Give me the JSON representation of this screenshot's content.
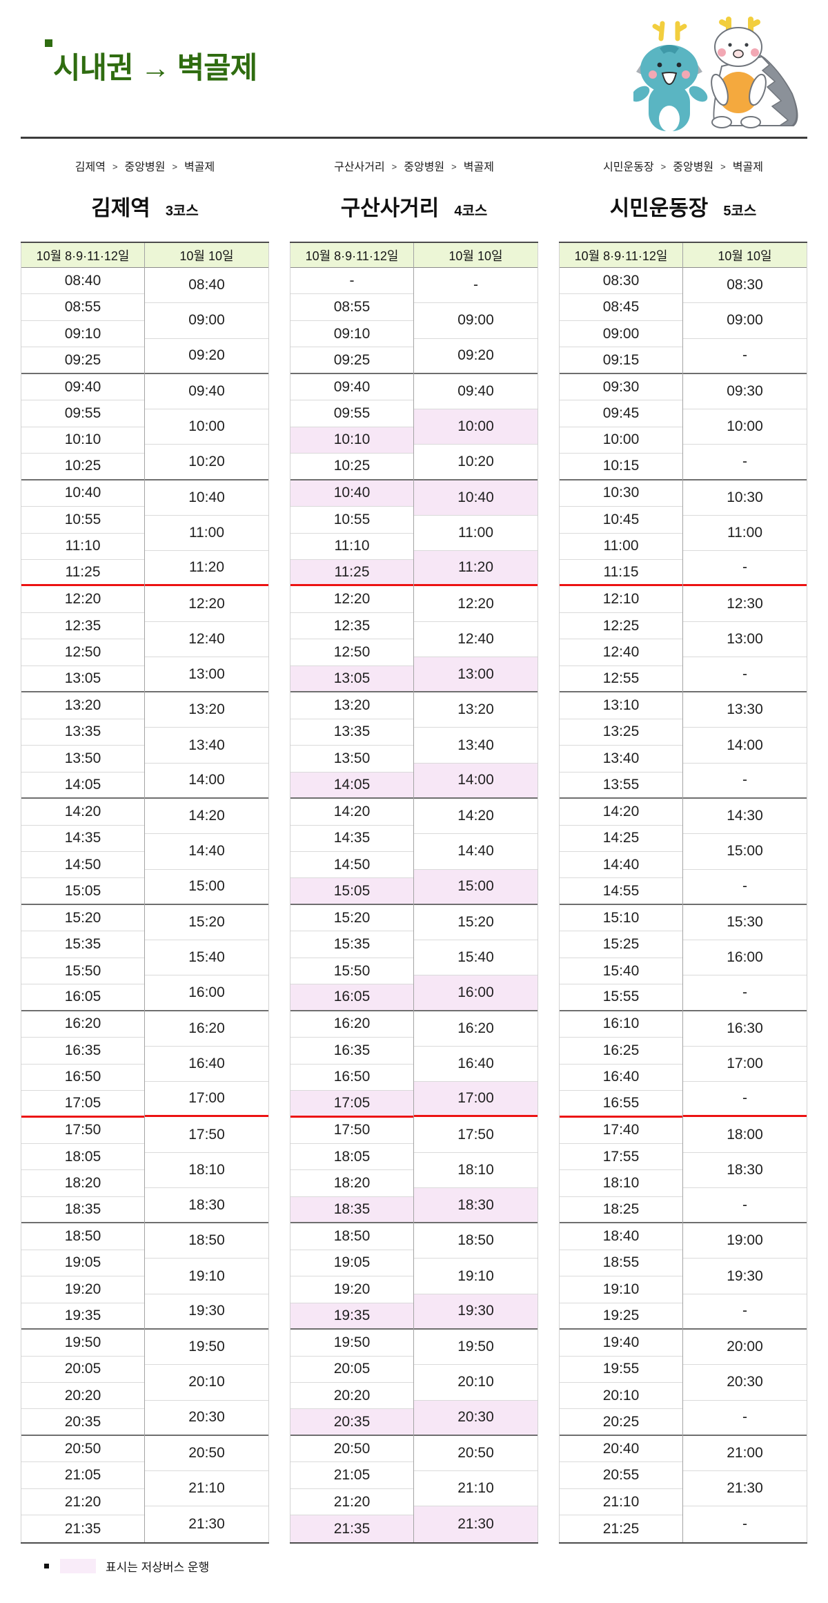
{
  "page": {
    "title": "시내권 → 벽골제",
    "breadcrumb_sep": ">",
    "colors": {
      "title_green": "#2f6c10",
      "header_bg": "#ecf6d6",
      "lowfloor_highlight": "#f7e7f6",
      "red_divider": "#ec1212",
      "mascot_teal": "#5ab5c2",
      "mascot_yellow": "#f2ce3e",
      "mascot_orange": "#f4a93e"
    }
  },
  "day_headers": [
    "10월 8·9·11·12일",
    "10월 10일"
  ],
  "legend": {
    "text": "표시는 저상버스 운행"
  },
  "tables": [
    {
      "breadcrumb": [
        "김제역",
        "중앙병원",
        "벽골제"
      ],
      "title": "김제역",
      "course": "3코스",
      "groups": [
        {
          "left": [
            "08:40",
            "08:55",
            "09:10",
            "09:25"
          ],
          "right": [
            "08:40",
            "09:00",
            "09:20"
          ],
          "left_hl": [],
          "right_hl": []
        },
        {
          "left": [
            "09:40",
            "09:55",
            "10:10",
            "10:25"
          ],
          "right": [
            "09:40",
            "10:00",
            "10:20"
          ],
          "left_hl": [],
          "right_hl": []
        },
        {
          "left": [
            "10:40",
            "10:55",
            "11:10",
            "11:25"
          ],
          "right": [
            "10:40",
            "11:00",
            "11:20"
          ],
          "left_hl": [],
          "right_hl": [],
          "red_after": true
        },
        {
          "left": [
            "12:20",
            "12:35",
            "12:50",
            "13:05"
          ],
          "right": [
            "12:20",
            "12:40",
            "13:00"
          ],
          "left_hl": [],
          "right_hl": []
        },
        {
          "left": [
            "13:20",
            "13:35",
            "13:50",
            "14:05"
          ],
          "right": [
            "13:20",
            "13:40",
            "14:00"
          ],
          "left_hl": [],
          "right_hl": []
        },
        {
          "left": [
            "14:20",
            "14:35",
            "14:50",
            "15:05"
          ],
          "right": [
            "14:20",
            "14:40",
            "15:00"
          ],
          "left_hl": [],
          "right_hl": []
        },
        {
          "left": [
            "15:20",
            "15:35",
            "15:50",
            "16:05"
          ],
          "right": [
            "15:20",
            "15:40",
            "16:00"
          ],
          "left_hl": [],
          "right_hl": []
        },
        {
          "left": [
            "16:20",
            "16:35",
            "16:50",
            "17:05"
          ],
          "right": [
            "16:20",
            "16:40",
            "17:00"
          ],
          "left_hl": [],
          "right_hl": [],
          "red_after": true
        },
        {
          "left": [
            "17:50",
            "18:05",
            "18:20",
            "18:35"
          ],
          "right": [
            "17:50",
            "18:10",
            "18:30"
          ],
          "left_hl": [],
          "right_hl": []
        },
        {
          "left": [
            "18:50",
            "19:05",
            "19:20",
            "19:35"
          ],
          "right": [
            "18:50",
            "19:10",
            "19:30"
          ],
          "left_hl": [],
          "right_hl": []
        },
        {
          "left": [
            "19:50",
            "20:05",
            "20:20",
            "20:35"
          ],
          "right": [
            "19:50",
            "20:10",
            "20:30"
          ],
          "left_hl": [],
          "right_hl": []
        },
        {
          "left": [
            "20:50",
            "21:05",
            "21:20",
            "21:35"
          ],
          "right": [
            "20:50",
            "21:10",
            "21:30"
          ],
          "left_hl": [],
          "right_hl": []
        }
      ]
    },
    {
      "breadcrumb": [
        "구산사거리",
        "중앙병원",
        "벽골제"
      ],
      "title": "구산사거리",
      "course": "4코스",
      "groups": [
        {
          "left": [
            "-",
            "08:55",
            "09:10",
            "09:25"
          ],
          "right": [
            "-",
            "09:00",
            "09:20"
          ],
          "left_hl": [],
          "right_hl": []
        },
        {
          "left": [
            "09:40",
            "09:55",
            "10:10",
            "10:25"
          ],
          "right": [
            "09:40",
            "10:00",
            "10:20"
          ],
          "left_hl": [
            2
          ],
          "right_hl": [
            1
          ]
        },
        {
          "left": [
            "10:40",
            "10:55",
            "11:10",
            "11:25"
          ],
          "right": [
            "10:40",
            "11:00",
            "11:20"
          ],
          "left_hl": [
            0,
            3
          ],
          "right_hl": [
            0,
            2
          ],
          "red_after": true
        },
        {
          "left": [
            "12:20",
            "12:35",
            "12:50",
            "13:05"
          ],
          "right": [
            "12:20",
            "12:40",
            "13:00"
          ],
          "left_hl": [
            3
          ],
          "right_hl": [
            2
          ]
        },
        {
          "left": [
            "13:20",
            "13:35",
            "13:50",
            "14:05"
          ],
          "right": [
            "13:20",
            "13:40",
            "14:00"
          ],
          "left_hl": [
            3
          ],
          "right_hl": [
            2
          ]
        },
        {
          "left": [
            "14:20",
            "14:35",
            "14:50",
            "15:05"
          ],
          "right": [
            "14:20",
            "14:40",
            "15:00"
          ],
          "left_hl": [
            3
          ],
          "right_hl": [
            2
          ]
        },
        {
          "left": [
            "15:20",
            "15:35",
            "15:50",
            "16:05"
          ],
          "right": [
            "15:20",
            "15:40",
            "16:00"
          ],
          "left_hl": [
            3
          ],
          "right_hl": [
            2
          ]
        },
        {
          "left": [
            "16:20",
            "16:35",
            "16:50",
            "17:05"
          ],
          "right": [
            "16:20",
            "16:40",
            "17:00"
          ],
          "left_hl": [
            3
          ],
          "right_hl": [
            2
          ],
          "red_after": true
        },
        {
          "left": [
            "17:50",
            "18:05",
            "18:20",
            "18:35"
          ],
          "right": [
            "17:50",
            "18:10",
            "18:30"
          ],
          "left_hl": [
            3
          ],
          "right_hl": [
            2
          ]
        },
        {
          "left": [
            "18:50",
            "19:05",
            "19:20",
            "19:35"
          ],
          "right": [
            "18:50",
            "19:10",
            "19:30"
          ],
          "left_hl": [
            3
          ],
          "right_hl": [
            2
          ]
        },
        {
          "left": [
            "19:50",
            "20:05",
            "20:20",
            "20:35"
          ],
          "right": [
            "19:50",
            "20:10",
            "20:30"
          ],
          "left_hl": [
            3
          ],
          "right_hl": [
            2
          ]
        },
        {
          "left": [
            "20:50",
            "21:05",
            "21:20",
            "21:35"
          ],
          "right": [
            "20:50",
            "21:10",
            "21:30"
          ],
          "left_hl": [
            3
          ],
          "right_hl": [
            2
          ]
        }
      ]
    },
    {
      "breadcrumb": [
        "시민운동장",
        "중앙병원",
        "벽골제"
      ],
      "title": "시민운동장",
      "course": "5코스",
      "groups": [
        {
          "left": [
            "08:30",
            "08:45",
            "09:00",
            "09:15"
          ],
          "right": [
            "08:30",
            "09:00",
            "-"
          ],
          "left_hl": [],
          "right_hl": []
        },
        {
          "left": [
            "09:30",
            "09:45",
            "10:00",
            "10:15"
          ],
          "right": [
            "09:30",
            "10:00",
            "-"
          ],
          "left_hl": [],
          "right_hl": []
        },
        {
          "left": [
            "10:30",
            "10:45",
            "11:00",
            "11:15"
          ],
          "right": [
            "10:30",
            "11:00",
            "-"
          ],
          "left_hl": [],
          "right_hl": [],
          "red_after": true
        },
        {
          "left": [
            "12:10",
            "12:25",
            "12:40",
            "12:55"
          ],
          "right": [
            "12:30",
            "13:00",
            "-"
          ],
          "left_hl": [],
          "right_hl": []
        },
        {
          "left": [
            "13:10",
            "13:25",
            "13:40",
            "13:55"
          ],
          "right": [
            "13:30",
            "14:00",
            "-"
          ],
          "left_hl": [],
          "right_hl": []
        },
        {
          "left": [
            "14:20",
            "14:25",
            "14:40",
            "14:55"
          ],
          "right": [
            "14:30",
            "15:00",
            "-"
          ],
          "left_hl": [],
          "right_hl": []
        },
        {
          "left": [
            "15:10",
            "15:25",
            "15:40",
            "15:55"
          ],
          "right": [
            "15:30",
            "16:00",
            "-"
          ],
          "left_hl": [],
          "right_hl": []
        },
        {
          "left": [
            "16:10",
            "16:25",
            "16:40",
            "16:55"
          ],
          "right": [
            "16:30",
            "17:00",
            "-"
          ],
          "left_hl": [],
          "right_hl": [],
          "red_after": true
        },
        {
          "left": [
            "17:40",
            "17:55",
            "18:10",
            "18:25"
          ],
          "right": [
            "18:00",
            "18:30",
            "-"
          ],
          "left_hl": [],
          "right_hl": []
        },
        {
          "left": [
            "18:40",
            "18:55",
            "19:10",
            "19:25"
          ],
          "right": [
            "19:00",
            "19:30",
            "-"
          ],
          "left_hl": [],
          "right_hl": []
        },
        {
          "left": [
            "19:40",
            "19:55",
            "20:10",
            "20:25"
          ],
          "right": [
            "20:00",
            "20:30",
            "-"
          ],
          "left_hl": [],
          "right_hl": []
        },
        {
          "left": [
            "20:40",
            "20:55",
            "21:10",
            "21:25"
          ],
          "right": [
            "21:00",
            "21:30",
            "-"
          ],
          "left_hl": [],
          "right_hl": []
        }
      ]
    }
  ]
}
